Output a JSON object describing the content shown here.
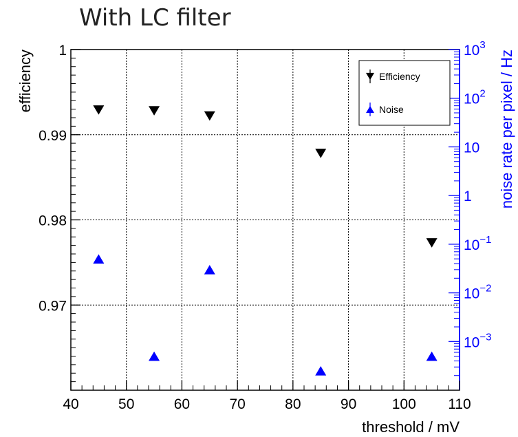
{
  "title": "With LC filter",
  "chart_data": {
    "type": "scatter",
    "xlabel": "threshold / mV",
    "ylabel_left": "efficiency",
    "ylabel_right": "noise rate per pixel / Hz",
    "xlim": [
      40,
      110
    ],
    "ylim_left": [
      0.96,
      1.0
    ],
    "ylim_right_log10": [
      -4,
      3
    ],
    "x_ticks": [
      "40",
      "50",
      "60",
      "70",
      "80",
      "90",
      "100",
      "110"
    ],
    "y_left_ticks": [
      "1",
      "0.99",
      "0.98",
      "0.97"
    ],
    "y_right_ticks": [
      {
        "exp": 3,
        "label": "10",
        "sup": "3"
      },
      {
        "exp": 2,
        "label": "10",
        "sup": "2"
      },
      {
        "exp": 1,
        "label": "10",
        "sup": ""
      },
      {
        "exp": 0,
        "label": "1",
        "sup": ""
      },
      {
        "exp": -1,
        "label": "10",
        "sup": "−1"
      },
      {
        "exp": -2,
        "label": "10",
        "sup": "−2"
      },
      {
        "exp": -3,
        "label": "10",
        "sup": "−3"
      }
    ],
    "grid": true,
    "legend_position": "top-right",
    "series": [
      {
        "name": "Efficiency",
        "axis": "left",
        "marker": "triangle-down",
        "color": "#000000",
        "points": [
          {
            "x": 45,
            "y": 0.9929
          },
          {
            "x": 55,
            "y": 0.9928
          },
          {
            "x": 65,
            "y": 0.9922
          },
          {
            "x": 85,
            "y": 0.9878
          },
          {
            "x": 105,
            "y": 0.9773
          }
        ]
      },
      {
        "name": "Noise",
        "axis": "right",
        "marker": "triangle-up",
        "color": "#0000ff",
        "points": [
          {
            "x": 45,
            "y": 0.05
          },
          {
            "x": 55,
            "y": 0.0005
          },
          {
            "x": 65,
            "y": 0.03
          },
          {
            "x": 85,
            "y": 0.00025
          },
          {
            "x": 105,
            "y": 0.0005
          }
        ]
      }
    ]
  }
}
